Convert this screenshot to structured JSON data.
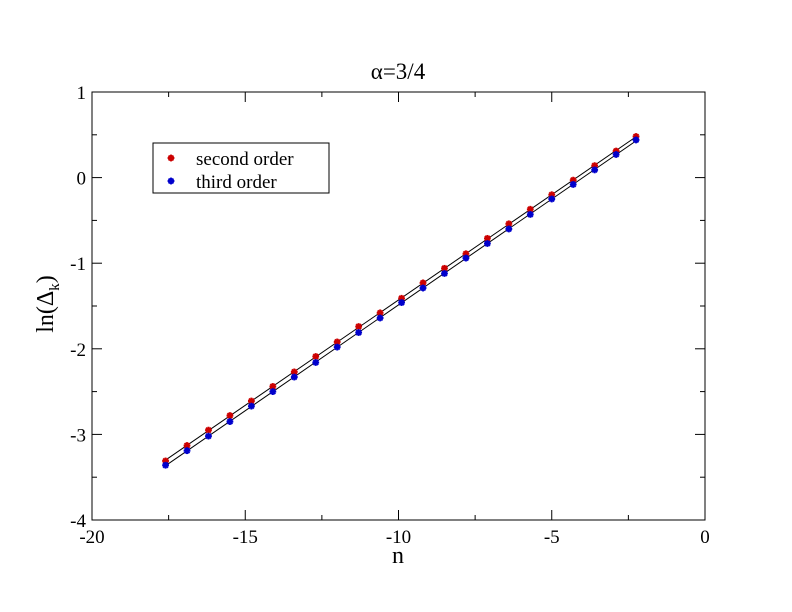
{
  "chart_data": {
    "type": "scatter",
    "title": "α=3/4",
    "xlabel": "n",
    "ylabel": "ln(Δ",
    "ylabel_sub": "k",
    "ylabel_close": ")",
    "xlim": [
      -20,
      0
    ],
    "ylim": [
      -4,
      1
    ],
    "x_ticks": [
      -20,
      -15,
      -10,
      -5,
      0
    ],
    "y_ticks": [
      -4,
      -3,
      -2,
      -1,
      0,
      1
    ],
    "x_tick_labels": [
      "-20",
      "-15",
      "-10",
      "-5",
      "0"
    ],
    "y_tick_labels": [
      "-4",
      "-3",
      "-2",
      "-1",
      "0",
      "1"
    ],
    "grid": false,
    "legend_position": "top-left",
    "x": [
      -17.6,
      -16.9,
      -16.2,
      -15.5,
      -14.8,
      -14.1,
      -13.4,
      -12.7,
      -12.0,
      -11.3,
      -10.6,
      -9.9,
      -9.2,
      -8.5,
      -7.8,
      -7.1,
      -6.4,
      -5.7,
      -5.0,
      -4.3,
      -3.6,
      -2.9,
      -2.25
    ],
    "series": [
      {
        "name": "second order",
        "color": "#cc0000",
        "values": [
          -3.31,
          -3.13,
          -2.95,
          -2.78,
          -2.61,
          -2.44,
          -2.27,
          -2.09,
          -1.92,
          -1.74,
          -1.58,
          -1.41,
          -1.23,
          -1.06,
          -0.89,
          -0.71,
          -0.54,
          -0.37,
          -0.2,
          -0.03,
          0.14,
          0.31,
          0.48
        ]
      },
      {
        "name": "third order",
        "color": "#0000cc",
        "values": [
          -3.36,
          -3.19,
          -3.02,
          -2.85,
          -2.67,
          -2.5,
          -2.33,
          -2.16,
          -1.98,
          -1.81,
          -1.64,
          -1.46,
          -1.29,
          -1.12,
          -0.94,
          -0.77,
          -0.6,
          -0.43,
          -0.25,
          -0.08,
          0.09,
          0.27,
          0.44
        ]
      }
    ],
    "fit_lines": [
      {
        "series": "second order",
        "color": "#000000"
      },
      {
        "series": "third order",
        "color": "#000000"
      }
    ]
  }
}
